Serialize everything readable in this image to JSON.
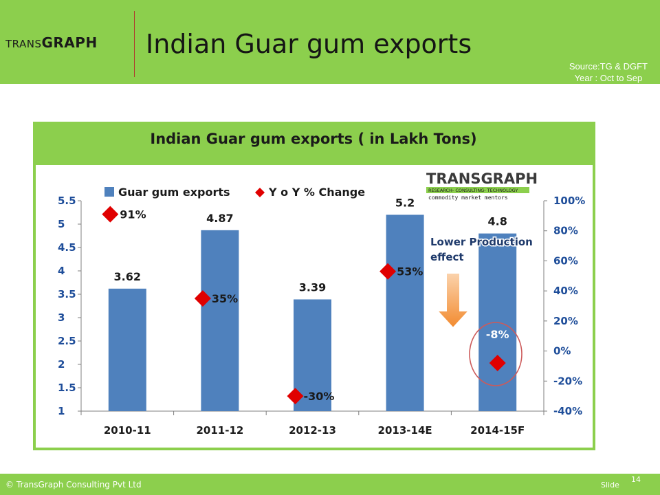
{
  "header": {
    "logo_small": "TRANS",
    "logo_big": "GRAPH",
    "title": "Indian Guar gum exports",
    "source_line1": "Source:TG & DGFT",
    "source_line2": "Year : Oct to Sep"
  },
  "footer": {
    "copyright": "© TransGraph Consulting Pvt Ltd",
    "slide_label": "Slide",
    "slide_number": "14"
  },
  "colors": {
    "header_green": "#8ccf4d",
    "bar_blue": "#4f81bd",
    "marker_red": "#e00000",
    "axis_label_blue": "#1f4e9a",
    "arrow_orange": "#f79646"
  },
  "chart_logo": {
    "big": "TRANSGRAPH",
    "tagline": "RESEARCH- CONSULTING- TECHNOLOGY",
    "motto": "commodity market mentors"
  },
  "annotation": {
    "line1": "Lower Production",
    "line2": "effect"
  },
  "chart_data": {
    "type": "bar",
    "title": "Indian Guar gum exports ( in Lakh Tons)",
    "categories": [
      "2010-11",
      "2011-12",
      "2012-13",
      "2013-14E",
      "2014-15F"
    ],
    "series": [
      {
        "name": "Guar gum exports",
        "kind": "bar",
        "axis": "left",
        "values": [
          3.62,
          4.87,
          3.39,
          5.2,
          4.8
        ],
        "labels": [
          "3.62",
          "4.87",
          "3.39",
          "5.2",
          "4.8"
        ]
      },
      {
        "name": "Y o Y % Change",
        "kind": "scatter",
        "axis": "right",
        "values": [
          91,
          35,
          -30,
          53,
          -8
        ],
        "labels": [
          "91%",
          "35%",
          "-30%",
          "53%",
          "-8%"
        ]
      }
    ],
    "y_left": {
      "min": 1,
      "max": 5.5,
      "ticks": [
        "1",
        "1.5",
        "2",
        "2.5",
        "3",
        "3.5",
        "4",
        "4.5",
        "5",
        "5.5"
      ]
    },
    "y_right": {
      "min": -40,
      "max": 100,
      "ticks": [
        "-40%",
        "-20%",
        "0%",
        "20%",
        "40%",
        "60%",
        "80%",
        "100%"
      ]
    },
    "grid": false,
    "legend_position": "top-left"
  }
}
